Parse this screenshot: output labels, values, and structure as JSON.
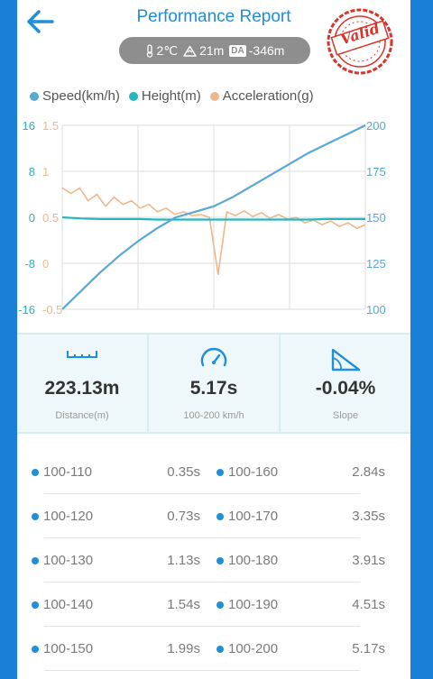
{
  "header": {
    "title": "Performance Report",
    "stamp_label": "Valid",
    "conditions": {
      "temperature": "2℃",
      "altitude": "21m",
      "density_label": "DA",
      "density_altitude": "-346m"
    }
  },
  "colors": {
    "speed": "#58a8d6",
    "height": "#26b6be",
    "acceleration": "#eeb88a",
    "accent": "#1f8fd9",
    "stamp": "#d9342b"
  },
  "legend": [
    {
      "label": "Speed(km/h)",
      "color": "#58a8d6"
    },
    {
      "label": "Height(m)",
      "color": "#26b6be"
    },
    {
      "label": "Acceleration(g)",
      "color": "#eeb88a"
    }
  ],
  "chart_data": {
    "type": "line",
    "axes": {
      "height": {
        "ticks": [
          "16",
          "8",
          "0",
          "-8",
          "-16"
        ],
        "range": [
          -16,
          16
        ],
        "color": "#26b6be"
      },
      "acceleration": {
        "ticks": [
          "1.5",
          "1",
          "0.5",
          "0",
          "-0.5"
        ],
        "range": [
          -0.5,
          1.5
        ],
        "color": "#eeb88a"
      },
      "speed": {
        "ticks": [
          "200",
          "175",
          "150",
          "125",
          "100"
        ],
        "range": [
          100,
          200
        ],
        "color": "#58a8d6"
      }
    },
    "grid": true,
    "series": [
      {
        "name": "Speed(km/h)",
        "color": "#58a8d6",
        "axis": "speed",
        "values": [
          100,
          110,
          120,
          129,
          137,
          144,
          150,
          153,
          156,
          161,
          167,
          173,
          179,
          185,
          190,
          195,
          200
        ]
      },
      {
        "name": "Height(m)",
        "color": "#26b6be",
        "axis": "height",
        "values": [
          0,
          -0.2,
          -0.3,
          -0.3,
          -0.3,
          -0.4,
          -0.4,
          -0.4,
          -0.4,
          -0.4,
          -0.4,
          -0.4,
          -0.4,
          -0.4,
          -0.3,
          -0.3,
          -0.3
        ]
      },
      {
        "name": "Acceleration(g)",
        "color": "#eeb88a",
        "axis": "acceleration",
        "values": [
          0.82,
          0.76,
          0.82,
          0.68,
          0.75,
          0.62,
          0.72,
          0.64,
          0.68,
          0.6,
          0.64,
          0.56,
          0.6,
          0.53,
          0.56,
          0.52,
          0.53,
          0.5,
          -0.12,
          0.56,
          0.52,
          0.57,
          0.51,
          0.55,
          0.49,
          0.53,
          0.48,
          0.5,
          0.44,
          0.47,
          0.42,
          0.46,
          0.4,
          0.44,
          0.38,
          0.42
        ]
      }
    ]
  },
  "stats": [
    {
      "value": "223.13m",
      "label": "Distance(m)",
      "icon": "ruler-icon"
    },
    {
      "value": "5.17s",
      "label": "100-200 km/h",
      "icon": "speedometer-icon"
    },
    {
      "value": "-0.04%",
      "label": "Slope",
      "icon": "slope-icon"
    }
  ],
  "splits": [
    {
      "left_range": "100-110",
      "left_time": "0.35s",
      "right_range": "100-160",
      "right_time": "2.84s"
    },
    {
      "left_range": "100-120",
      "left_time": "0.73s",
      "right_range": "100-170",
      "right_time": "3.35s"
    },
    {
      "left_range": "100-130",
      "left_time": "1.13s",
      "right_range": "100-180",
      "right_time": "3.91s"
    },
    {
      "left_range": "100-140",
      "left_time": "1.54s",
      "right_range": "100-190",
      "right_time": "4.51s"
    },
    {
      "left_range": "100-150",
      "left_time": "1.99s",
      "right_range": "100-200",
      "right_time": "5.17s"
    }
  ]
}
